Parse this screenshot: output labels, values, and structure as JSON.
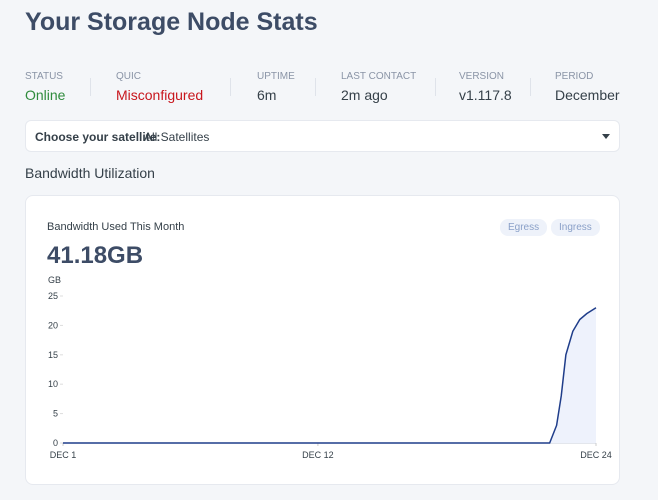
{
  "header": {
    "title": "Your Storage Node Stats"
  },
  "stats": [
    {
      "label": "STATUS",
      "value": "Online"
    },
    {
      "label": "QUIC",
      "value": "Misconfigured"
    },
    {
      "label": "UPTIME",
      "value": "6m"
    },
    {
      "label": "LAST CONTACT",
      "value": "2m ago"
    },
    {
      "label": "VERSION",
      "value": "v1.117.8"
    },
    {
      "label": "PERIOD",
      "value": "December"
    }
  ],
  "satellite_select": {
    "label": "Choose your satellite:",
    "value": "All Satellites"
  },
  "section_title": "Bandwidth Utilization",
  "card": {
    "title": "Bandwidth Used This Month",
    "total": "41.18GB",
    "toggles": [
      "Egress",
      "Ingress"
    ]
  },
  "chart_data": {
    "type": "area",
    "y_label": "GB",
    "color": "#1f3d8a",
    "fill": "#eef2fc",
    "x": [
      1,
      22,
      22.3,
      22.5,
      22.7,
      23,
      23.3,
      23.6,
      24
    ],
    "values": [
      0,
      0,
      3,
      8,
      15,
      19,
      21,
      22,
      23
    ],
    "xlim": [
      1,
      24
    ],
    "xticks": [
      {
        "value": 1,
        "label": "DEC 1"
      },
      {
        "value": 12,
        "label": "DEC 12"
      },
      {
        "value": 24,
        "label": "DEC 24"
      }
    ],
    "ylim": [
      0,
      25
    ],
    "yticks": [
      0,
      5,
      10,
      15,
      20,
      25
    ]
  }
}
